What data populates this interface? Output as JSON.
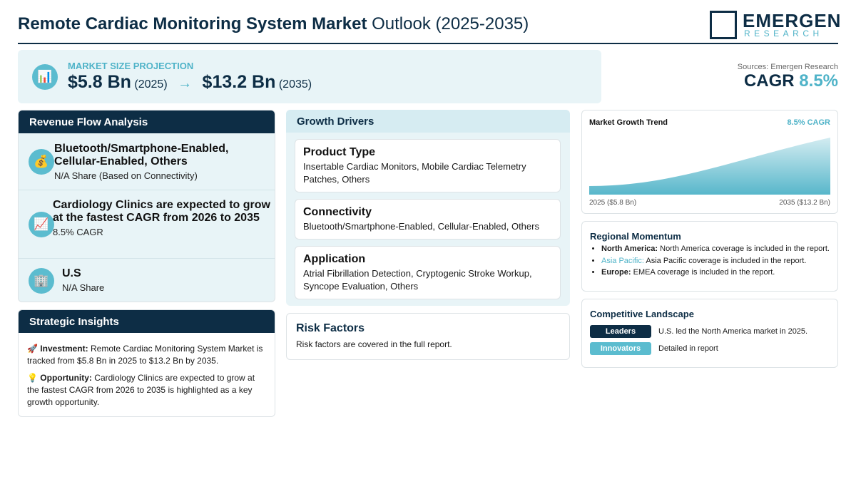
{
  "header": {
    "title_bold": "Remote Cardiac Monitoring System Market",
    "title_rest": "Outlook (2025-2035)",
    "logo_main": "EMERGEN",
    "logo_sub": "RESEARCH"
  },
  "projection": {
    "label": "MARKET SIZE PROJECTION",
    "start_value": "$5.8 Bn",
    "start_year": "(2025)",
    "end_value": "$13.2 Bn",
    "end_year": "(2035)",
    "sources": "Sources: Emergen Research",
    "cagr_label": "CAGR",
    "cagr_value": "8.5%"
  },
  "revenue_flow": {
    "title": "Revenue Flow Analysis",
    "items": [
      {
        "title": "Bluetooth/Smartphone-Enabled, Cellular-Enabled, Others",
        "subtitle": "N/A Share (Based on Connectivity)"
      },
      {
        "title": "Cardiology Clinics are expected to grow at the fastest CAGR from 2026 to 2035",
        "subtitle": "8.5% CAGR"
      },
      {
        "title": "U.S",
        "subtitle": "N/A Share"
      }
    ]
  },
  "strategic_insights": {
    "title": "Strategic Insights",
    "items": [
      {
        "label": "Investment:",
        "text": "Remote Cardiac Monitoring System Market is tracked from $5.8 Bn in 2025 to $13.2 Bn by 2035."
      },
      {
        "label": "Opportunity:",
        "text": "Cardiology Clinics are expected to grow at the fastest CAGR from 2026 to 2035 is highlighted as a key growth opportunity."
      }
    ]
  },
  "growth_drivers": {
    "title": "Growth Drivers",
    "items": [
      {
        "title": "Product Type",
        "text": "Insertable Cardiac Monitors, Mobile Cardiac Telemetry Patches, Others"
      },
      {
        "title": "Connectivity",
        "text": "Bluetooth/Smartphone-Enabled, Cellular-Enabled, Others"
      },
      {
        "title": "Application",
        "text": "Atrial Fibrillation Detection, Cryptogenic Stroke Workup, Syncope Evaluation, Others"
      }
    ]
  },
  "risk_factors": {
    "title": "Risk Factors",
    "text": "Risk factors are covered in the full report."
  },
  "chart_data": {
    "type": "area",
    "title": "Market Growth Trend",
    "badge": "8.5% CAGR",
    "color": "#4fb3c8",
    "x": [
      2025,
      2035
    ],
    "values": [
      5.8,
      13.2
    ],
    "value_labels": [
      "2025 ($5.8 Bn)",
      "2035 ($13.2 Bn)"
    ]
  },
  "regional_momentum": {
    "title": "Regional Momentum",
    "items": [
      {
        "region": "North America:",
        "text": "North America coverage is included in the report."
      },
      {
        "region": "Asia Pacific:",
        "text": "Asia Pacific coverage is included in the report."
      },
      {
        "region": "Europe:",
        "text": "EMEA coverage is included in the report."
      }
    ]
  },
  "competitive_landscape": {
    "title": "Competitive Landscape",
    "items": [
      {
        "badge": "Leaders",
        "text": "U.S. led the North America market in 2025."
      },
      {
        "badge": "Innovators",
        "text": "Detailed in report"
      }
    ]
  }
}
